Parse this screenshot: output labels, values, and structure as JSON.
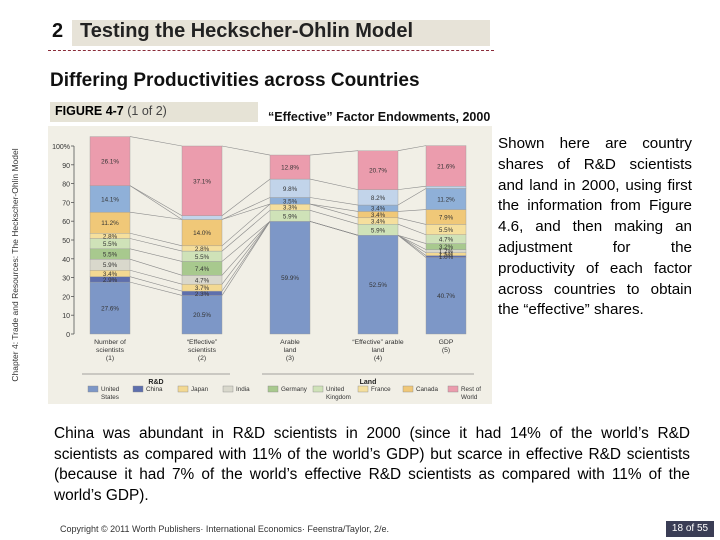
{
  "side_label": "Chapter 4: Trade and Resources: The Heckscher-Ohlin Model",
  "title": {
    "number": "2",
    "text": "Testing the Heckscher-Ohlin Model"
  },
  "subtitle": "Differing Productivities across Countries",
  "figure": {
    "label": "FIGURE 4-7",
    "part": "(1 of 2)",
    "title": "“Effective” Factor Endowments, 2000"
  },
  "right_text": "Shown here are country shares of R&D scientists and land in 2000, using first the information from Figure 4.6, and then making an adjustment for the productivity of each factor across countries to obtain the “effective” shares.",
  "bottom_text": "China was abundant in R&D scientists in 2000 (since it had 14% of the world’s R&D scientists as compared with 11% of the world’s GDP) but scarce in effective R&D scientists (because it had 7% of the world’s effective R&D scientists as compared with 11% of the world’s GDP).",
  "footer": "Copyright © 2011 Worth Publishers· International Economics· Feenstra/Taylor, 2/e.",
  "page": "18 of 55",
  "chart_data": {
    "type": "bar",
    "ylim": [
      0,
      100
    ],
    "y_ticks": [
      "0",
      "10",
      "20",
      "30",
      "40",
      "50",
      "60",
      "70",
      "80",
      "90",
      "100%"
    ],
    "categories": [
      {
        "label": "Number of scientists",
        "num": "(1)"
      },
      {
        "label": "“Effective” scientists",
        "num": "(2)"
      },
      {
        "label": "Arable land",
        "num": "(3)"
      },
      {
        "label": "“Effective” arable land",
        "num": "(4)"
      },
      {
        "label": "GDP",
        "num": "(5)"
      }
    ],
    "groups": [
      {
        "label": "R&D",
        "from": 0,
        "to": 1
      },
      {
        "label": "Land",
        "from": 2,
        "to": 4
      }
    ],
    "series": [
      {
        "name": "United States",
        "color": "#7d97c7",
        "values": [
          27.6,
          20.5,
          59.9,
          52.5,
          40.7
        ]
      },
      {
        "name": "China",
        "color": "#5e6fad",
        "values": [
          2.9,
          2.3,
          0.0,
          0.0,
          1.0
        ]
      },
      {
        "name": "Japan",
        "color": "#f3d992",
        "values": [
          3.4,
          3.7,
          0.0,
          0.0,
          1.5
        ]
      },
      {
        "name": "India",
        "color": "#d9d8cc",
        "values": [
          5.9,
          4.7,
          0.0,
          0.0,
          1.7
        ]
      },
      {
        "name": "Germany",
        "color": "#a8c98e",
        "values": [
          5.5,
          7.4,
          0.0,
          0.0,
          3.2
        ]
      },
      {
        "name": "United Kingdom",
        "color": "#cfe2b8",
        "values": [
          5.5,
          5.5,
          5.9,
          5.9,
          4.7
        ]
      },
      {
        "name": "France",
        "color": "#f5df9d",
        "values": [
          2.8,
          2.8,
          3.3,
          3.4,
          5.5
        ]
      },
      {
        "name": "Canada",
        "color": "#f0c878",
        "values": [
          11.2,
          14.0,
          0.0,
          3.4,
          7.9
        ]
      },
      {
        "name": "",
        "color": "#8fb0d8",
        "values": [
          14.1,
          0.0,
          3.5,
          3.4,
          11.2
        ]
      },
      {
        "name": "",
        "color": "#c2d4ea",
        "values": [
          0.0,
          2.0,
          9.8,
          8.2,
          1.2
        ]
      },
      {
        "name": "Rest of World",
        "color": "#eb9cad",
        "values": [
          26.1,
          37.1,
          12.8,
          20.7,
          21.6
        ]
      }
    ],
    "data_labels": [
      [
        "27.6%",
        "2.9%",
        "3.4%",
        "5.9%",
        "5.5%",
        "5.5%",
        "2.8%",
        "11.2%",
        "14.1%",
        "",
        "26.1%"
      ],
      [
        "20.5%",
        "2.3%",
        "3.7%",
        "4.7%",
        "7.4%",
        "5.5%",
        "2.8%",
        "14.0%",
        "",
        "",
        "37.1%"
      ],
      [
        "59.9%",
        "",
        "",
        "",
        "",
        "5.9%",
        "3.3%",
        "",
        "3.5%",
        "9.8%",
        "12.8%"
      ],
      [
        "52.5%",
        "",
        "",
        "",
        "",
        "5.9%",
        "3.4%",
        "3.4%",
        "3.4%",
        "8.2%",
        "20.7%"
      ],
      [
        "40.7%",
        "1.0%",
        "1.5%",
        "1.7%",
        "3.2%",
        "4.7%",
        "5.5%",
        "7.9%",
        "11.2%",
        "",
        "21.6%"
      ]
    ]
  }
}
